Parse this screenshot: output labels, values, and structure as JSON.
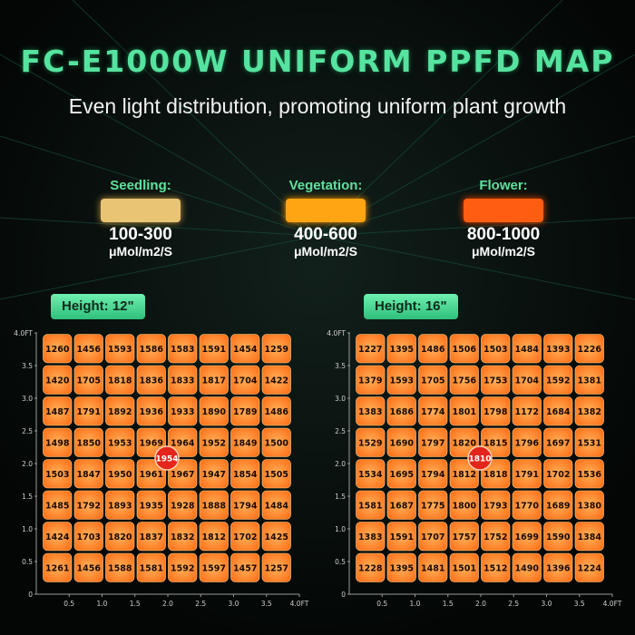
{
  "header": {
    "title": "FC-E1000W UNIFORM PPFD MAP",
    "subtitle": "Even light distribution, promoting uniform plant growth"
  },
  "legend": [
    {
      "label": "Seedling:",
      "range": "100-300",
      "unit": "μMol/m2/S",
      "color": "#e8c474"
    },
    {
      "label": "Vegetation:",
      "range": "400-600",
      "unit": "μMol/m2/S",
      "color": "#ffa514"
    },
    {
      "label": "Flower:",
      "range": "800-1000",
      "unit": "μMol/m2/S",
      "color": "#ff5e12"
    }
  ],
  "colors": {
    "cell": "#ff7a1a",
    "cell_text": "#1a0a00",
    "center_marker": "#e3251b",
    "axis": "#9a9a9a",
    "accent": "#5fe09c"
  },
  "chart_data": [
    {
      "type": "heatmap",
      "height_label": "Height: 12\"",
      "y_ticks": [
        "4.0FT",
        "3.5",
        "3.0",
        "2.5",
        "2.0",
        "1.5",
        "1.0",
        "0.5",
        "0"
      ],
      "x_ticks": [
        "0.5",
        "1.0",
        "1.5",
        "2.0",
        "2.5",
        "3.0",
        "3.5",
        "4.0FT"
      ],
      "xlim": [
        0,
        4.0
      ],
      "ylim": [
        0,
        4.0
      ],
      "center_value": 1954,
      "rows": [
        [
          1260,
          1456,
          1593,
          1586,
          1583,
          1591,
          1454,
          1259
        ],
        [
          1420,
          1705,
          1818,
          1836,
          1833,
          1817,
          1704,
          1422
        ],
        [
          1487,
          1791,
          1892,
          1936,
          1933,
          1890,
          1789,
          1486
        ],
        [
          1498,
          1850,
          1953,
          1969,
          1964,
          1952,
          1849,
          1500
        ],
        [
          1503,
          1847,
          1950,
          1961,
          1967,
          1947,
          1854,
          1505
        ],
        [
          1485,
          1792,
          1893,
          1935,
          1928,
          1888,
          1794,
          1484
        ],
        [
          1424,
          1703,
          1820,
          1837,
          1832,
          1812,
          1702,
          1425
        ],
        [
          1261,
          1456,
          1588,
          1581,
          1592,
          1597,
          1457,
          1257
        ]
      ]
    },
    {
      "type": "heatmap",
      "height_label": "Height: 16\"",
      "y_ticks": [
        "4.0FT",
        "3.5",
        "3.0",
        "2.5",
        "2.0",
        "1.5",
        "1.0",
        "0.5",
        "0"
      ],
      "x_ticks": [
        "0.5",
        "1.0",
        "1.5",
        "2.0",
        "2.5",
        "3.0",
        "3.5",
        "4.0FT"
      ],
      "xlim": [
        0,
        4.0
      ],
      "ylim": [
        0,
        4.0
      ],
      "center_value": 1810,
      "rows": [
        [
          1227,
          1395,
          1486,
          1506,
          1503,
          1484,
          1393,
          1226
        ],
        [
          1379,
          1593,
          1705,
          1756,
          1753,
          1704,
          1592,
          1381
        ],
        [
          1383,
          1686,
          1774,
          1801,
          1798,
          1172,
          1684,
          1382
        ],
        [
          1529,
          1690,
          1797,
          1820,
          1815,
          1796,
          1697,
          1531
        ],
        [
          1534,
          1695,
          1794,
          1812,
          1818,
          1791,
          1702,
          1536
        ],
        [
          1581,
          1687,
          1775,
          1800,
          1793,
          1770,
          1689,
          1380
        ],
        [
          1383,
          1591,
          1707,
          1757,
          1752,
          1699,
          1590,
          1384
        ],
        [
          1228,
          1395,
          1481,
          1501,
          1512,
          1490,
          1396,
          1224
        ]
      ]
    }
  ]
}
